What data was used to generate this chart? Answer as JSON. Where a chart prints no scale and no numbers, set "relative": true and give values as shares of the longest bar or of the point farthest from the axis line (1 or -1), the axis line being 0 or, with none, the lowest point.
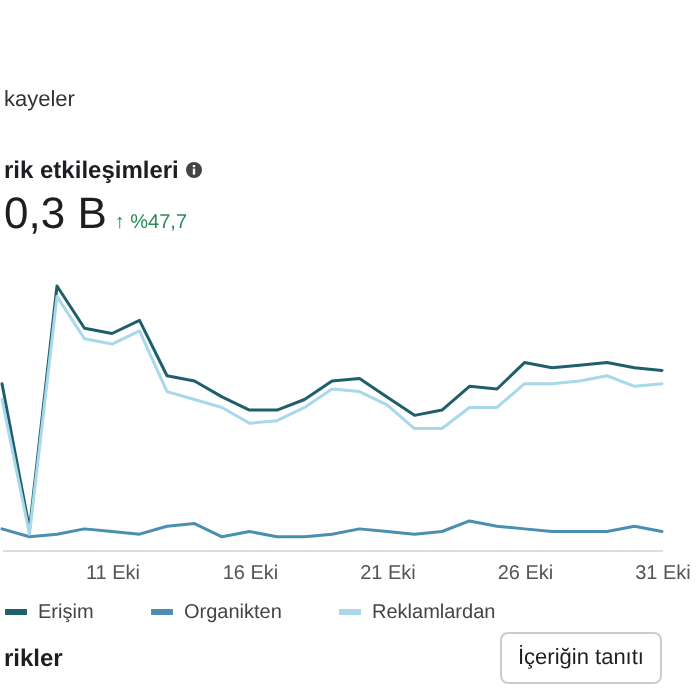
{
  "chart_data": {
    "type": "line",
    "title": "rik etkileşimleri",
    "subtitle": "0,3 B ↑ %47,7",
    "annotations": [
      "kayeler",
      "rikler",
      "İçeriğin tanıtı"
    ],
    "x": [
      "--10-07",
      "--10-08",
      "--10-09",
      "--10-10",
      "--10-11",
      "--10-12",
      "--10-13",
      "--10-14",
      "--10-15",
      "--10-16",
      "--10-17",
      "--10-18",
      "--10-19",
      "--10-20",
      "--10-21",
      "--10-22",
      "--10-23",
      "--10-24",
      "--10-25",
      "--10-26",
      "--10-27",
      "--10-28",
      "--10-29",
      "--10-30",
      "--10-31"
    ],
    "xlim": [
      "--10-07",
      "--10-31"
    ],
    "xticks": [
      {
        "value": "--10-11",
        "label": "11 Eki"
      },
      {
        "value": "--10-16",
        "label": "16 Eki"
      },
      {
        "value": "--10-21",
        "label": "21 Eki"
      },
      {
        "value": "--10-26",
        "label": "26 Eki"
      },
      {
        "value": "--10-31",
        "label": "31 Eki"
      }
    ],
    "relative": true,
    "series": [
      {
        "name": "Erişim",
        "color": "#1f5f6b",
        "values": [
          0.63,
          0.08,
          1,
          0.84,
          0.82,
          0.87,
          0.66,
          0.64,
          0.58,
          0.53,
          0.53,
          0.57,
          0.64,
          0.65,
          0.58,
          0.51,
          0.53,
          0.62,
          0.61,
          0.71,
          0.69,
          0.7,
          0.71,
          0.69,
          0.68
        ]
      },
      {
        "name": "Organikten",
        "color": "#4a8fb0",
        "values": [
          0.08,
          0.05,
          0.06,
          0.08,
          0.07,
          0.06,
          0.09,
          0.1,
          0.05,
          0.07,
          0.05,
          0.05,
          0.06,
          0.08,
          0.07,
          0.06,
          0.07,
          0.11,
          0.09,
          0.08,
          0.07,
          0.07,
          0.07,
          0.09,
          0.07
        ]
      },
      {
        "name": "Reklamlardan",
        "color": "#a8d8ea",
        "values": [
          0.57,
          0.06,
          0.96,
          0.8,
          0.78,
          0.83,
          0.6,
          0.57,
          0.54,
          0.48,
          0.49,
          0.54,
          0.61,
          0.6,
          0.55,
          0.46,
          0.46,
          0.54,
          0.54,
          0.63,
          0.63,
          0.64,
          0.66,
          0.62,
          0.63
        ]
      }
    ],
    "legend": "bottom",
    "marker": "none",
    "line_style": "solid"
  }
}
